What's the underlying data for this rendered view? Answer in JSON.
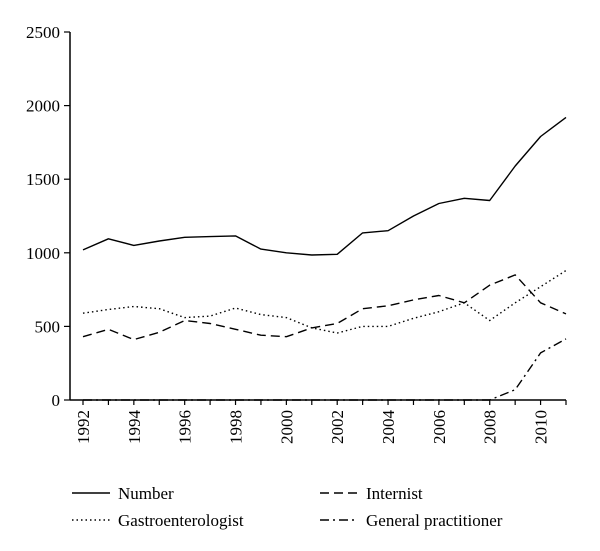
{
  "chart_data": {
    "type": "line",
    "title": "",
    "xlabel": "",
    "ylabel": "",
    "x": [
      1992,
      1993,
      1994,
      1995,
      1996,
      1997,
      1998,
      1999,
      2000,
      2001,
      2002,
      2003,
      2004,
      2005,
      2006,
      2007,
      2008,
      2009,
      2010,
      2011
    ],
    "x_tick_labels": [
      "1992",
      "1994",
      "1996",
      "1998",
      "2000",
      "2002",
      "2004",
      "2006",
      "2008",
      "2010"
    ],
    "y_tick_labels": [
      "0",
      "500",
      "1000",
      "1500",
      "2000",
      "2500"
    ],
    "ylim": [
      0,
      2500
    ],
    "xlim": [
      1992,
      2011
    ],
    "grid": false,
    "legend_position": "bottom",
    "series": [
      {
        "name": "Number",
        "style": "solid",
        "values": [
          1020,
          1095,
          1050,
          1080,
          1105,
          1110,
          1115,
          1025,
          1000,
          985,
          990,
          1135,
          1150,
          1250,
          1335,
          1370,
          1355,
          1590,
          1790,
          1920
        ]
      },
      {
        "name": "Internist",
        "style": "dashed",
        "values": [
          430,
          480,
          410,
          460,
          540,
          520,
          480,
          440,
          430,
          490,
          520,
          620,
          640,
          680,
          710,
          660,
          780,
          850,
          660,
          585
        ]
      },
      {
        "name": "Gastroenterologist",
        "style": "dotted",
        "values": [
          590,
          615,
          635,
          620,
          560,
          570,
          625,
          580,
          560,
          490,
          455,
          500,
          500,
          555,
          600,
          660,
          540,
          660,
          770,
          880
        ]
      },
      {
        "name": "General practitioner",
        "style": "dashdot",
        "values": [
          0,
          0,
          0,
          0,
          0,
          0,
          0,
          0,
          0,
          0,
          0,
          0,
          0,
          0,
          0,
          0,
          0,
          70,
          320,
          415
        ]
      }
    ]
  }
}
